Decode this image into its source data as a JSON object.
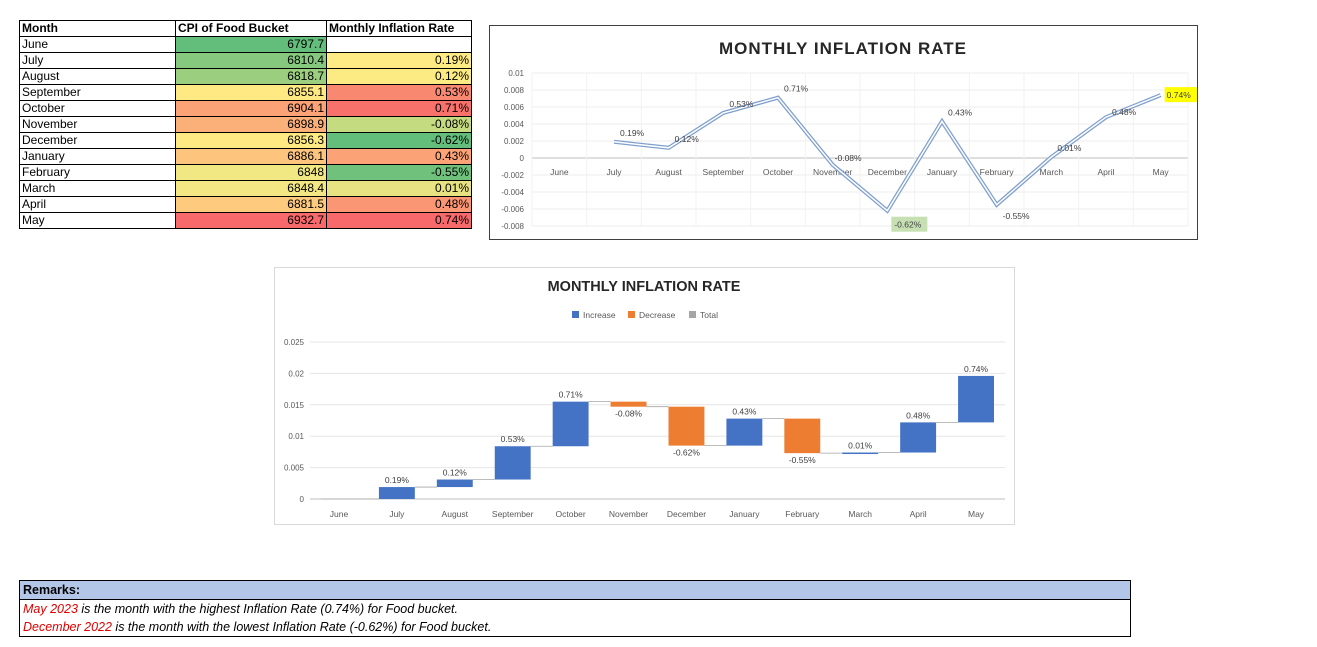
{
  "table": {
    "headers": [
      "Month",
      "CPI of Food Bucket",
      "Monthly Inflation Rate"
    ],
    "rows": [
      {
        "month": "June",
        "cpi": "6797.7",
        "rate": "",
        "cpi_color": "#63be7b",
        "rate_color": "#ffffff"
      },
      {
        "month": "July",
        "cpi": "6810.4",
        "rate": "0.19%",
        "cpi_color": "#86c97e",
        "rate_color": "#ffeb84"
      },
      {
        "month": "August",
        "cpi": "6818.7",
        "rate": "0.12%",
        "cpi_color": "#9bcf7f",
        "rate_color": "#fcea83"
      },
      {
        "month": "September",
        "cpi": "6855.1",
        "rate": "0.53%",
        "cpi_color": "#fee983",
        "rate_color": "#f98870"
      },
      {
        "month": "October",
        "cpi": "6904.1",
        "rate": "0.71%",
        "cpi_color": "#fba276",
        "rate_color": "#f8716b"
      },
      {
        "month": "November",
        "cpi": "6898.9",
        "rate": "-0.08%",
        "cpi_color": "#fcb079",
        "rate_color": "#c4db80"
      },
      {
        "month": "December",
        "cpi": "6856.3",
        "rate": "-0.62%",
        "cpi_color": "#fee983",
        "rate_color": "#63be7b"
      },
      {
        "month": "January",
        "cpi": "6886.1",
        "rate": "0.43%",
        "cpi_color": "#fdc47d",
        "rate_color": "#fba276"
      },
      {
        "month": "February",
        "cpi": "6848",
        "rate": "-0.55%",
        "cpi_color": "#f1e783",
        "rate_color": "#6fc17c"
      },
      {
        "month": "March",
        "cpi": "6848.4",
        "rate": "0.01%",
        "cpi_color": "#f2e783",
        "rate_color": "#e8e382"
      },
      {
        "month": "April",
        "cpi": "6881.5",
        "rate": "0.48%",
        "cpi_color": "#fdca7e",
        "rate_color": "#fa9673"
      },
      {
        "month": "May",
        "cpi": "6932.7",
        "rate": "0.74%",
        "cpi_color": "#f8696b",
        "rate_color": "#f8696b"
      }
    ]
  },
  "chart_data": [
    {
      "type": "line",
      "title": "MONTHLY INFLATION RATE",
      "categories": [
        "June",
        "July",
        "August",
        "September",
        "October",
        "November",
        "December",
        "January",
        "February",
        "March",
        "April",
        "May"
      ],
      "values": [
        null,
        0.0019,
        0.0012,
        0.0053,
        0.0071,
        -0.0008,
        -0.0062,
        0.0043,
        -0.0055,
        0.0001,
        0.0048,
        0.0074
      ],
      "data_labels": [
        "",
        "0.19%",
        "0.12%",
        "0.53%",
        "0.71%",
        "-0.08%",
        "-0.62%",
        "0.43%",
        "-0.55%",
        "0.01%",
        "0.48%",
        "0.74%"
      ],
      "y_ticks": [
        "0.01",
        "0.008",
        "0.006",
        "0.004",
        "0.002",
        "0",
        "-0.002",
        "-0.004",
        "-0.006",
        "-0.008"
      ],
      "ylim": [
        -0.008,
        0.01
      ],
      "grid": true,
      "highlight": {
        "max_index": 11,
        "max_color": "#ffff00",
        "min_index": 6,
        "min_color": "#c6e0b4"
      },
      "line_color": "#7f9fcf"
    },
    {
      "type": "bar",
      "subtype": "waterfall",
      "title": "MONTHLY INFLATION RATE",
      "legend": [
        "Increase",
        "Decrease",
        "Total"
      ],
      "legend_colors": [
        "#4472c4",
        "#ed7d31",
        "#a5a5a5"
      ],
      "legend_position": "top",
      "categories": [
        "June",
        "July",
        "August",
        "September",
        "October",
        "November",
        "December",
        "January",
        "February",
        "March",
        "April",
        "May"
      ],
      "values": [
        0,
        0.0019,
        0.0012,
        0.0053,
        0.0071,
        -0.0008,
        -0.0062,
        0.0043,
        -0.0055,
        0.0001,
        0.0048,
        0.0074
      ],
      "data_labels": [
        "",
        "0.19%",
        "0.12%",
        "0.53%",
        "0.71%",
        "-0.08%",
        "-0.62%",
        "0.43%",
        "-0.55%",
        "0.01%",
        "0.48%",
        "0.74%"
      ],
      "y_ticks": [
        "0.025",
        "0.02",
        "0.015",
        "0.01",
        "0.005",
        "0"
      ],
      "ylim": [
        0,
        0.025
      ],
      "grid": true
    }
  ],
  "remarks": {
    "title": "Remarks:",
    "lines": [
      {
        "highlight": "May 2023",
        "text": "  is the month with the highest Inflation Rate (0.74%) for Food bucket."
      },
      {
        "highlight": "December 2022",
        "text": "  is the month with the lowest Inflation Rate (-0.62%) for Food bucket."
      }
    ]
  }
}
